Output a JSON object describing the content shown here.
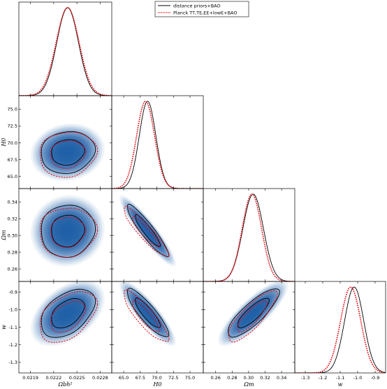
{
  "chart_data": {
    "type": "corner-plot",
    "title": "",
    "legend": {
      "placement": "top-right",
      "entries": [
        {
          "label": "distance priors+BAO",
          "color": "#000000",
          "style": "solid"
        },
        {
          "label": "Planck TT,TE,EE+lowE+BAO",
          "color": "#e8000b",
          "style": "dotted"
        }
      ]
    },
    "parameters": [
      {
        "key": "obh2",
        "label": "Ωbh²",
        "range": [
          0.02175,
          0.02295
        ],
        "ticks": [
          0.0219,
          0.0222,
          0.0225,
          0.0228
        ],
        "tick_labels": [
          "0.0219",
          "0.0222",
          "0.0225",
          "0.0228"
        ]
      },
      {
        "key": "H0",
        "label": "H0",
        "range": [
          63.2,
          77.0
        ],
        "ticks": [
          65.0,
          67.5,
          70.0,
          72.5,
          75.0
        ],
        "tick_labels": [
          "65.0",
          "67.5",
          "70.0",
          "72.5",
          "75.0"
        ]
      },
      {
        "key": "Om",
        "label": "Ωm",
        "range": [
          0.245,
          0.356
        ],
        "ticks": [
          0.26,
          0.28,
          0.3,
          0.32,
          0.34
        ],
        "tick_labels": [
          "0.26",
          "0.28",
          "0.30",
          "0.32",
          "0.34"
        ]
      },
      {
        "key": "w",
        "label": "w",
        "range": [
          -1.36,
          -0.84
        ],
        "ticks": [
          -1.3,
          -1.2,
          -1.1,
          -1.0,
          -0.9
        ],
        "tick_labels": [
          "-1.3",
          "-1.2",
          "-1.1",
          "-1.0",
          "-0.9"
        ]
      }
    ],
    "series": [
      {
        "name": "distance priors+BAO",
        "color": "#000000",
        "mean": [
          0.02238,
          68.6,
          0.3055,
          -1.02
        ],
        "sigma": [
          0.00014,
          1.25,
          0.0125,
          0.055
        ]
      },
      {
        "name": "Planck TT,TE,EE+lowE+BAO",
        "color": "#e8000b",
        "mean": [
          0.02238,
          68.3,
          0.304,
          -1.04
        ],
        "sigma": [
          0.000148,
          1.35,
          0.0118,
          0.058
        ]
      }
    ],
    "correlations": {
      "0-1": 0.1,
      "0-2": 0.05,
      "0-3": 0.45,
      "1-2": -0.92,
      "1-3": -0.87,
      "2-3": 0.83
    },
    "filled_series": "distance priors+BAO",
    "fill_color": "#1f5fa8",
    "grid": false
  }
}
